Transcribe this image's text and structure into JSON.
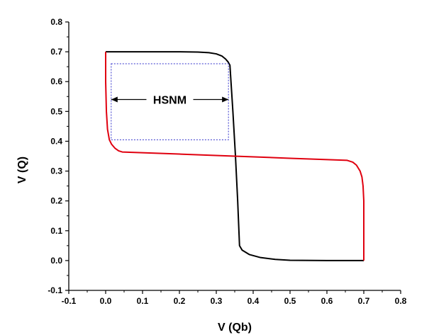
{
  "chart_data": {
    "type": "line",
    "title": "",
    "xlabel": "V (Qb)",
    "ylabel": "V (Q)",
    "xlim": [
      -0.1,
      0.8
    ],
    "ylim": [
      -0.1,
      0.8
    ],
    "x_ticks": [
      -0.1,
      0.0,
      0.1,
      0.2,
      0.3,
      0.4,
      0.5,
      0.6,
      0.7,
      0.8
    ],
    "x_tick_labels": [
      "-0.1",
      "0.0",
      "0.1",
      "0.2",
      "0.3",
      "0.4",
      "0.5",
      "0.6",
      "0.7",
      "0.8"
    ],
    "y_ticks": [
      -0.1,
      0.0,
      0.1,
      0.2,
      0.3,
      0.4,
      0.5,
      0.6,
      0.7,
      0.8
    ],
    "y_tick_labels": [
      "-0.1",
      "0.0",
      "0.1",
      "0.2",
      "0.3",
      "0.4",
      "0.5",
      "0.6",
      "0.7",
      "0.8"
    ],
    "grid": false,
    "series": [
      {
        "color": "#000000",
        "points": [
          [
            0.0,
            0.7
          ],
          [
            0.1,
            0.7
          ],
          [
            0.2,
            0.7
          ],
          [
            0.25,
            0.699
          ],
          [
            0.28,
            0.697
          ],
          [
            0.3,
            0.693
          ],
          [
            0.315,
            0.686
          ],
          [
            0.325,
            0.676
          ],
          [
            0.332,
            0.666
          ],
          [
            0.337,
            0.655
          ],
          [
            0.345,
            0.5
          ],
          [
            0.352,
            0.35
          ],
          [
            0.358,
            0.2
          ],
          [
            0.363,
            0.05
          ],
          [
            0.37,
            0.035
          ],
          [
            0.39,
            0.02
          ],
          [
            0.42,
            0.01
          ],
          [
            0.46,
            0.004
          ],
          [
            0.5,
            0.001
          ],
          [
            0.6,
            0.0
          ],
          [
            0.7,
            0.0
          ]
        ]
      },
      {
        "color": "#e0000f",
        "points": [
          [
            0.0,
            0.7
          ],
          [
            0.0,
            0.6
          ],
          [
            0.002,
            0.5
          ],
          [
            0.005,
            0.44
          ],
          [
            0.01,
            0.405
          ],
          [
            0.016,
            0.39
          ],
          [
            0.025,
            0.377
          ],
          [
            0.035,
            0.368
          ],
          [
            0.045,
            0.364
          ],
          [
            0.2,
            0.357
          ],
          [
            0.35,
            0.35
          ],
          [
            0.5,
            0.343
          ],
          [
            0.655,
            0.336
          ],
          [
            0.67,
            0.33
          ],
          [
            0.68,
            0.32
          ],
          [
            0.69,
            0.3
          ],
          [
            0.695,
            0.28
          ],
          [
            0.698,
            0.25
          ],
          [
            0.7,
            0.2
          ],
          [
            0.7,
            0.1
          ],
          [
            0.7,
            0.0
          ]
        ]
      }
    ],
    "annotations": [
      {
        "text": "HSNM",
        "rect": {
          "x1": 0.015,
          "x2": 0.333,
          "y1": 0.405,
          "y2": 0.66,
          "color": "#3333cc",
          "style": "dotted"
        },
        "arrow": {
          "x1": 0.015,
          "x2": 0.333,
          "y": 0.54
        }
      }
    ]
  }
}
